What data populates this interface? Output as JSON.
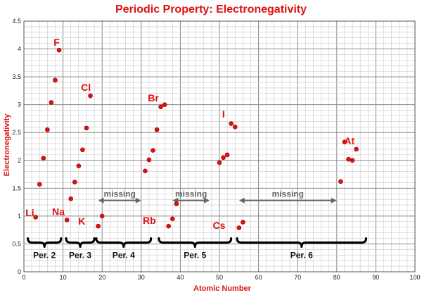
{
  "colors": {
    "title": "#dd1111",
    "axis_title": "#dd1111",
    "points": "#dd1111",
    "element_labels": "#dd1111",
    "missing": "#666666",
    "grid_minor": "#c8c8c8",
    "grid_major": "#888888"
  },
  "chart_data": {
    "type": "scatter",
    "title": "Periodic Property: Electronegativity",
    "xlabel": "Atomic Number",
    "ylabel": "Electronegativity",
    "xlim": [
      0,
      100
    ],
    "ylim": [
      0,
      4.5
    ],
    "x_ticks": [
      "0",
      "10",
      "20",
      "30",
      "40",
      "50",
      "60",
      "70",
      "80",
      "90",
      "100"
    ],
    "y_ticks": [
      "0",
      "0.5",
      "1",
      "1.5",
      "2",
      "2.5",
      "3",
      "3.5",
      "4",
      "4.5"
    ],
    "grid": true,
    "series": [
      {
        "points": [
          {
            "x": 3,
            "y": 0.98
          },
          {
            "x": 4,
            "y": 1.57
          },
          {
            "x": 5,
            "y": 2.04
          },
          {
            "x": 6,
            "y": 2.55
          },
          {
            "x": 7,
            "y": 3.04
          },
          {
            "x": 8,
            "y": 3.44
          },
          {
            "x": 9,
            "y": 3.98
          },
          {
            "x": 11,
            "y": 0.93
          },
          {
            "x": 12,
            "y": 1.31
          },
          {
            "x": 13,
            "y": 1.61
          },
          {
            "x": 14,
            "y": 1.9
          },
          {
            "x": 15,
            "y": 2.19
          },
          {
            "x": 16,
            "y": 2.58
          },
          {
            "x": 17,
            "y": 3.16
          },
          {
            "x": 19,
            "y": 0.82
          },
          {
            "x": 20,
            "y": 1.0
          },
          {
            "x": 31,
            "y": 1.81
          },
          {
            "x": 32,
            "y": 2.01
          },
          {
            "x": 33,
            "y": 2.18
          },
          {
            "x": 34,
            "y": 2.55
          },
          {
            "x": 35,
            "y": 2.96
          },
          {
            "x": 36,
            "y": 3.0
          },
          {
            "x": 37,
            "y": 0.82
          },
          {
            "x": 38,
            "y": 0.95
          },
          {
            "x": 39,
            "y": 1.22
          },
          {
            "x": 50,
            "y": 1.96
          },
          {
            "x": 51,
            "y": 2.05
          },
          {
            "x": 52,
            "y": 2.1
          },
          {
            "x": 53,
            "y": 2.66
          },
          {
            "x": 54,
            "y": 2.6
          },
          {
            "x": 55,
            "y": 0.79
          },
          {
            "x": 56,
            "y": 0.89
          },
          {
            "x": 81,
            "y": 1.62
          },
          {
            "x": 82,
            "y": 2.33
          },
          {
            "x": 83,
            "y": 2.02
          },
          {
            "x": 84,
            "y": 2.0
          },
          {
            "x": 85,
            "y": 2.2
          }
        ]
      }
    ],
    "element_labels": [
      {
        "text": "Li",
        "x": 0.4,
        "y": 1.0
      },
      {
        "text": "F",
        "x": 7.6,
        "y": 4.06
      },
      {
        "text": "Na",
        "x": 7.2,
        "y": 1.02
      },
      {
        "text": "Cl",
        "x": 14.6,
        "y": 3.25
      },
      {
        "text": "K",
        "x": 13.9,
        "y": 0.85
      },
      {
        "text": "Br",
        "x": 31.7,
        "y": 3.06
      },
      {
        "text": "Rb",
        "x": 30.4,
        "y": 0.86
      },
      {
        "text": "I",
        "x": 50.7,
        "y": 2.77
      },
      {
        "text": "Cs",
        "x": 48.3,
        "y": 0.77
      },
      {
        "text": "At",
        "x": 81.9,
        "y": 2.29
      }
    ],
    "periods": [
      {
        "label": "Per. 2",
        "x_start": 1.0,
        "x_end": 9.5
      },
      {
        "label": "Per. 3",
        "x_start": 10.8,
        "x_end": 18.0
      },
      {
        "label": "Per. 4",
        "x_start": 18.5,
        "x_end": 32.5
      },
      {
        "label": "Per. 5",
        "x_start": 34.5,
        "x_end": 53.0
      },
      {
        "label": "Per. 6",
        "x_start": 54.5,
        "x_end": 87.5
      }
    ],
    "missing_ranges": [
      {
        "label": "missing",
        "x_start": 19,
        "x_end": 30
      },
      {
        "label": "missing",
        "x_start": 38,
        "x_end": 47.5
      },
      {
        "label": "missing",
        "x_start": 55,
        "x_end": 80
      }
    ]
  }
}
